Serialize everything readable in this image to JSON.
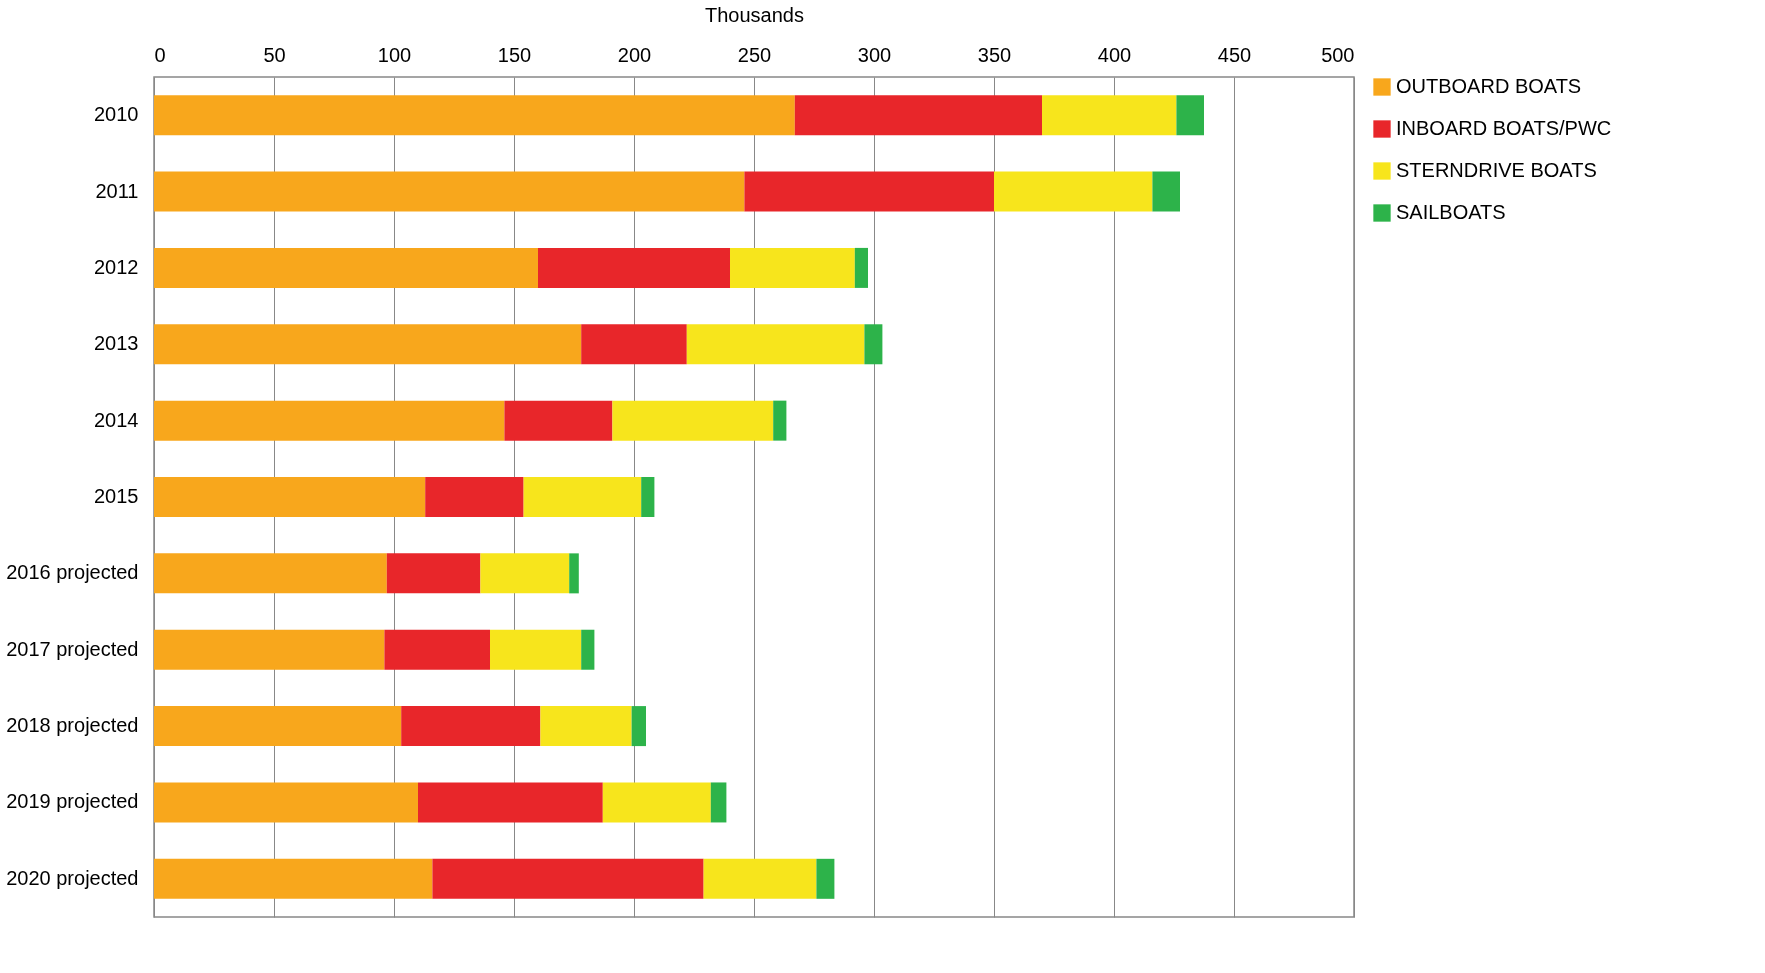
{
  "chart_data": {
    "type": "bar",
    "orientation": "horizontal",
    "stacked": true,
    "xlabel": "Thousands",
    "categories": [
      "2010",
      "2011",
      "2012",
      "2013",
      "2014",
      "2015",
      "2016 projected",
      "2017 projected",
      "2018 projected",
      "2019 projected",
      "2020 projected"
    ],
    "series": [
      {
        "name": "OUTBOARD BOATS",
        "color": "#f8a71c",
        "values": [
          267,
          246,
          160,
          178,
          146,
          113,
          97,
          96,
          103,
          110,
          116
        ]
      },
      {
        "name": "INBOARD BOATS/PWC",
        "color": "#e8262a",
        "values": [
          103,
          104,
          80,
          44,
          45,
          41,
          39,
          44,
          58,
          77,
          113
        ]
      },
      {
        "name": "STERNDRIVE BOATS",
        "color": "#f7e51c",
        "values": [
          56,
          66,
          52,
          74,
          67,
          49,
          37,
          38,
          38,
          45,
          47
        ]
      },
      {
        "name": "SAILBOATS",
        "color": "#2db34a",
        "values": [
          11.5,
          11.5,
          5.5,
          7.5,
          5.5,
          5.5,
          4,
          5.5,
          6,
          6.5,
          7.5
        ]
      }
    ],
    "xlim": [
      0,
      500
    ],
    "xticks": [
      0,
      50,
      100,
      150,
      200,
      250,
      300,
      350,
      400,
      450,
      500
    ],
    "grid": "x",
    "legend": "right"
  }
}
